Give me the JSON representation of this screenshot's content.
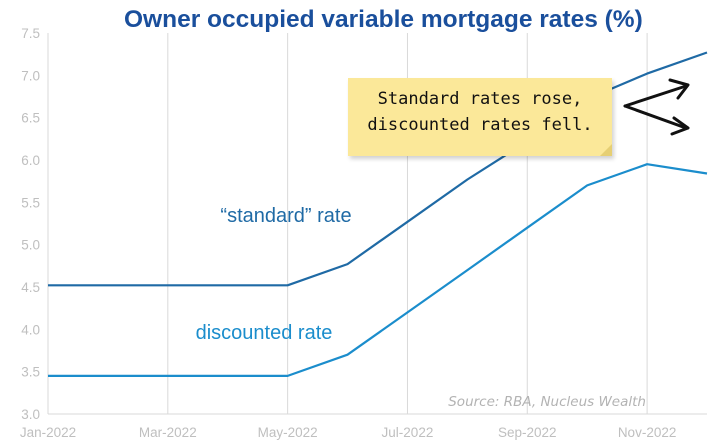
{
  "chart_data": {
    "type": "line",
    "title": "Owner occupied variable mortgage rates (%)",
    "x": [
      "2022-01",
      "2022-02",
      "2022-03",
      "2022-04",
      "2022-05",
      "2022-06",
      "2022-07",
      "2022-08",
      "2022-09",
      "2022-10",
      "2022-11",
      "2022-12"
    ],
    "xticks": [
      "Jan-2022",
      "Mar-2022",
      "May-2022",
      "Jul-2022",
      "Sep-2022",
      "Nov-2022"
    ],
    "ylim": [
      3.0,
      7.5
    ],
    "yticks": [
      "3.0",
      "3.5",
      "4.0",
      "4.5",
      "5.0",
      "5.5",
      "6.0",
      "6.5",
      "7.0",
      "7.5"
    ],
    "grid": "vertical",
    "series": [
      {
        "name": "“standard” rate",
        "color": "#1f6aa5",
        "values": [
          4.52,
          4.52,
          4.52,
          4.52,
          4.52,
          4.77,
          5.27,
          5.77,
          6.22,
          6.72,
          7.02,
          7.27
        ]
      },
      {
        "name": "discounted rate",
        "color": "#1b8dcc",
        "values": [
          3.45,
          3.45,
          3.45,
          3.45,
          3.45,
          3.7,
          4.2,
          4.7,
          5.2,
          5.7,
          5.95,
          5.84
        ]
      }
    ],
    "source": "Source: RBA, Nucleus Wealth",
    "annotation": {
      "text": "Standard rates rose,\ndiscounted rates fell.",
      "background": "#fbe899"
    }
  }
}
